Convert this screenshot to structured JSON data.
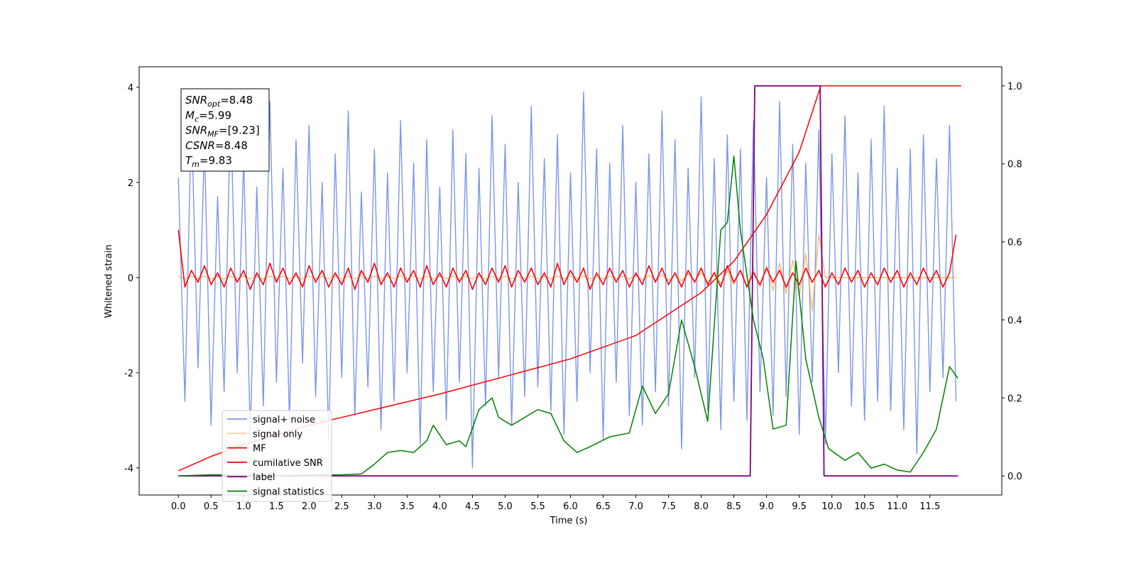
{
  "chart_data": {
    "type": "line",
    "xlabel": "Time (s)",
    "ylabel": "Whitened strain",
    "xlim": [
      -0.6,
      12.6
    ],
    "ylim": [
      -4.57,
      4.43
    ],
    "y2lim": [
      -0.049,
      1.049
    ],
    "xticks": [
      {
        "value": 0,
        "label": "0.0"
      },
      0.5,
      {
        "value": 1,
        "label": "1.0"
      },
      1.5,
      {
        "value": 2,
        "label": "2.0"
      },
      2.5,
      {
        "value": 3,
        "label": "3.0"
      },
      3.5,
      {
        "value": 4,
        "label": "4.0"
      },
      4.5,
      {
        "value": 5,
        "label": "5.0"
      },
      5.5,
      {
        "value": 6,
        "label": "6.0"
      },
      6.5,
      {
        "value": 7,
        "label": "7.0"
      },
      7.5,
      {
        "value": 8,
        "label": "8.0"
      },
      8.5,
      {
        "value": 9,
        "label": "9.0"
      },
      9.5,
      {
        "value": 10,
        "label": "10.0"
      },
      10.5,
      {
        "value": 11,
        "label": "11.0"
      },
      11.5
    ],
    "yticks": [
      -4,
      -2,
      0,
      2,
      4
    ],
    "y2ticks": [
      {
        "value": 0,
        "label": "0.0"
      },
      0.2,
      0.4,
      0.6,
      0.8,
      {
        "value": 1,
        "label": "1.0"
      }
    ],
    "annotations": [
      {
        "symbol": "SNR",
        "sub": "opt",
        "text": "=8.48"
      },
      {
        "symbol": "M",
        "sub": "c",
        "text": "=5.99"
      },
      {
        "symbol": "SNR",
        "sub": "MF",
        "text": "=[9.23]"
      },
      {
        "symbol": "CSNR",
        "sub": "",
        "text": "=8.48"
      },
      {
        "symbol": "T",
        "sub": "m",
        "text": "=9.83"
      }
    ],
    "x": [
      0,
      0.1,
      0.2,
      0.3,
      0.4,
      0.5,
      0.6,
      0.7,
      0.8,
      0.9,
      1,
      1.1,
      1.2,
      1.3,
      1.4,
      1.5,
      1.6,
      1.7,
      1.8,
      1.9,
      2,
      2.1,
      2.2,
      2.3,
      2.4,
      2.5,
      2.6,
      2.7,
      2.8,
      2.9,
      3,
      3.1,
      3.2,
      3.3,
      3.4,
      3.5,
      3.6,
      3.7,
      3.8,
      3.9,
      4,
      4.1,
      4.2,
      4.3,
      4.4,
      4.5,
      4.6,
      4.7,
      4.8,
      4.9,
      5,
      5.1,
      5.2,
      5.3,
      5.4,
      5.5,
      5.6,
      5.7,
      5.8,
      5.9,
      6,
      6.1,
      6.2,
      6.3,
      6.4,
      6.5,
      6.6,
      6.7,
      6.8,
      6.9,
      7,
      7.1,
      7.2,
      7.3,
      7.4,
      7.5,
      7.6,
      7.7,
      7.8,
      7.9,
      8,
      8.1,
      8.2,
      8.3,
      8.4,
      8.5,
      8.6,
      8.7,
      8.8,
      8.9,
      9,
      9.1,
      9.2,
      9.3,
      9.4,
      9.5,
      9.6,
      9.7,
      9.8,
      9.9,
      10,
      10.1,
      10.2,
      10.3,
      10.4,
      10.5,
      10.6,
      10.7,
      10.8,
      10.9,
      11,
      11.1,
      11.2,
      11.3,
      11.4,
      11.5,
      11.6,
      11.7,
      11.8,
      11.9
    ],
    "series": [
      {
        "name": "signal+ noise",
        "color": "#7b96e8",
        "values": [
          2.1,
          -2.6,
          3.4,
          -1.9,
          2.8,
          -3.1,
          1.7,
          -2.4,
          3.6,
          -2.0,
          2.5,
          -3.3,
          1.9,
          -2.7,
          3.7,
          -2.2,
          2.3,
          -3.0,
          2.9,
          -1.8,
          3.2,
          -2.5,
          2.0,
          -3.4,
          2.6,
          -2.1,
          3.5,
          -2.9,
          1.8,
          -2.3,
          2.7,
          -3.2,
          2.2,
          -2.6,
          3.3,
          -2.0,
          2.4,
          -3.5,
          2.9,
          -2.4,
          1.9,
          -3.0,
          3.1,
          -2.2,
          2.6,
          -4.0,
          2.3,
          -2.7,
          3.4,
          -2.1,
          2.8,
          -3.1,
          2.0,
          -2.5,
          3.6,
          -2.3,
          2.5,
          -2.8,
          3.0,
          -3.3,
          2.2,
          -2.6,
          3.9,
          -2.0,
          2.7,
          -3.4,
          2.4,
          -2.2,
          3.2,
          -2.9,
          2.0,
          -3.1,
          2.6,
          -2.4,
          3.5,
          -2.7,
          2.9,
          -3.6,
          2.3,
          -2.1,
          3.8,
          -2.8,
          2.5,
          -3.2,
          3.0,
          -2.6,
          2.7,
          -3.0,
          3.3,
          -2.4,
          2.1,
          -2.9,
          3.7,
          -2.5,
          2.8,
          -3.3,
          2.4,
          -2.2,
          3.1,
          -3.5,
          2.6,
          -2.0,
          3.4,
          -2.7,
          2.2,
          -3.0,
          2.9,
          -2.6,
          3.6,
          -2.8,
          2.3,
          -3.2,
          2.7,
          -3.7,
          3.0,
          -2.4,
          2.5,
          -2.1,
          3.2,
          -2.6
        ]
      },
      {
        "name": "signal only",
        "color": "#f0b060",
        "values": [
          0.03,
          -0.03,
          0.03,
          -0.03,
          0.03,
          -0.03,
          0.03,
          -0.03,
          0.03,
          -0.03,
          0.03,
          -0.03,
          0.03,
          -0.03,
          0.03,
          -0.03,
          0.03,
          -0.03,
          0.03,
          -0.03,
          0.03,
          -0.03,
          0.03,
          -0.03,
          0.03,
          -0.03,
          0.03,
          -0.03,
          0.03,
          -0.03,
          0.03,
          -0.03,
          0.03,
          -0.03,
          0.03,
          -0.03,
          0.03,
          -0.03,
          0.03,
          -0.03,
          0.03,
          -0.03,
          0.03,
          -0.03,
          0.03,
          -0.03,
          0.03,
          -0.03,
          0.03,
          -0.03,
          0.03,
          -0.03,
          0.03,
          -0.03,
          0.03,
          -0.03,
          0.03,
          -0.03,
          0.03,
          -0.03,
          0.03,
          -0.03,
          0.03,
          -0.03,
          0.03,
          -0.03,
          0.03,
          -0.03,
          0.03,
          -0.03,
          0.05,
          -0.05,
          0.05,
          -0.06,
          0.06,
          -0.06,
          0.07,
          -0.07,
          0.08,
          -0.08,
          0.1,
          -0.11,
          0.12,
          -0.13,
          0.14,
          -0.15,
          0.16,
          -0.17,
          0.19,
          -0.2,
          0.25,
          -0.27,
          0.3,
          -0.33,
          0.37,
          -0.4,
          0.5,
          -0.7,
          0.9,
          0,
          0,
          0,
          0,
          0,
          0,
          0,
          0,
          0,
          0,
          0,
          0,
          0,
          0,
          0,
          0,
          0,
          0,
          0,
          0,
          0
        ]
      },
      {
        "name": "MF",
        "color": "#ff0000",
        "values": [
          1.0,
          -0.2,
          0.15,
          -0.1,
          0.25,
          -0.15,
          0.1,
          -0.2,
          0.2,
          -0.1,
          0.15,
          -0.25,
          0.1,
          -0.15,
          0.3,
          -0.1,
          0.2,
          -0.15,
          0.1,
          -0.2,
          0.25,
          -0.1,
          0.15,
          -0.2,
          0.1,
          -0.15,
          0.2,
          -0.25,
          0.15,
          -0.1,
          0.3,
          -0.15,
          0.1,
          -0.2,
          0.2,
          -0.1,
          0.15,
          -0.2,
          0.25,
          -0.15,
          0.1,
          -0.2,
          0.2,
          -0.1,
          0.15,
          -0.25,
          0.1,
          -0.15,
          0.2,
          -0.1,
          0.25,
          -0.2,
          0.15,
          -0.1,
          0.2,
          -0.15,
          0.1,
          -0.2,
          0.3,
          -0.15,
          0.15,
          -0.1,
          0.2,
          -0.25,
          0.1,
          -0.15,
          0.2,
          -0.1,
          0.15,
          -0.2,
          0.1,
          -0.15,
          0.25,
          -0.1,
          0.2,
          -0.15,
          0.1,
          -0.2,
          0.15,
          -0.1,
          0.2,
          -0.15,
          0.1,
          -0.2,
          0.25,
          -0.1,
          0.15,
          -0.2,
          0.1,
          -0.15,
          0.2,
          -0.1,
          0.15,
          -0.2,
          0.1,
          -0.15,
          0.2,
          -0.1,
          0.15,
          -0.2,
          0.1,
          -0.15,
          0.2,
          -0.1,
          0.15,
          -0.2,
          0.1,
          -0.15,
          0.2,
          -0.1,
          0.15,
          -0.2,
          0.1,
          -0.15,
          0.2,
          -0.1,
          0.15,
          -0.2,
          0.1,
          0.9
        ]
      },
      {
        "name": "cumilative SNR",
        "color": "#ff0000",
        "axis": "y2",
        "x": [
          0,
          0.5,
          1,
          2,
          3,
          4,
          5,
          6,
          7,
          8,
          8.5,
          9,
          9.5,
          9.83,
          11.98
        ],
        "values": [
          0.013,
          0.05,
          0.08,
          0.13,
          0.17,
          0.21,
          0.255,
          0.3,
          0.36,
          0.47,
          0.55,
          0.67,
          0.83,
          1.0,
          1.0
        ]
      },
      {
        "name": "label",
        "color": "#800080",
        "axis": "y2",
        "x": [
          0,
          8.75,
          8.82,
          9.82,
          9.88,
          11.93
        ],
        "values": [
          0,
          0,
          1,
          1,
          0,
          0
        ]
      },
      {
        "name": "signal statistics",
        "color": "#008000",
        "axis": "y2",
        "x": [
          0,
          0.5,
          1,
          1.5,
          2,
          2.5,
          2.8,
          3.0,
          3.2,
          3.4,
          3.6,
          3.8,
          3.9,
          4.1,
          4.3,
          4.4,
          4.6,
          4.8,
          4.9,
          5.1,
          5.3,
          5.5,
          5.7,
          5.9,
          6.1,
          6.3,
          6.6,
          6.9,
          7.1,
          7.3,
          7.5,
          7.7,
          7.9,
          8.1,
          8.3,
          8.4,
          8.5,
          8.6,
          8.8,
          8.95,
          9.1,
          9.3,
          9.45,
          9.6,
          9.8,
          9.95,
          10.2,
          10.4,
          10.6,
          10.8,
          11.0,
          11.2,
          11.4,
          11.6,
          11.8,
          11.93
        ],
        "values": [
          0,
          0.003,
          0.002,
          0.001,
          0.002,
          0.003,
          0.005,
          0.03,
          0.06,
          0.065,
          0.06,
          0.09,
          0.13,
          0.08,
          0.09,
          0.075,
          0.17,
          0.2,
          0.15,
          0.13,
          0.15,
          0.17,
          0.16,
          0.09,
          0.06,
          0.075,
          0.1,
          0.11,
          0.23,
          0.16,
          0.21,
          0.4,
          0.28,
          0.14,
          0.63,
          0.65,
          0.82,
          0.63,
          0.4,
          0.3,
          0.12,
          0.13,
          0.55,
          0.3,
          0.15,
          0.07,
          0.04,
          0.06,
          0.02,
          0.03,
          0.015,
          0.01,
          0.06,
          0.12,
          0.28,
          0.25
        ]
      }
    ]
  }
}
